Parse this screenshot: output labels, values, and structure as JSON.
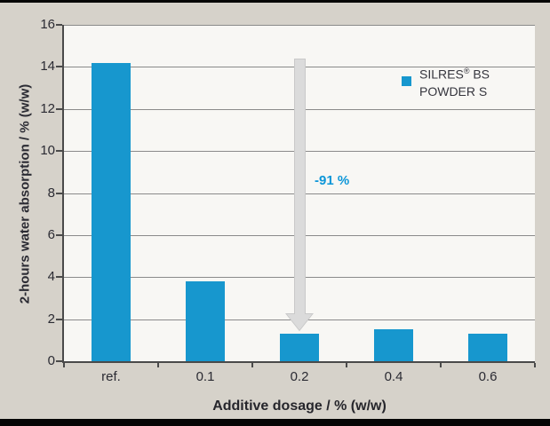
{
  "colors": {
    "bar_blue": "#1797CE",
    "annotation_blue": "#0C96D8",
    "background": "#D6D2CA",
    "plot_background": "#F8F7F4",
    "gridline": "#8A8A8A",
    "axis": "#4A4A4A",
    "text_dark": "#2B2B33",
    "arrow_fill": "#DBDBDB",
    "arrow_stroke": "#C9C9C9",
    "border_strip": "#050505"
  },
  "chart_data": {
    "type": "bar",
    "title": "",
    "categories": [
      "ref.",
      "0.1",
      "0.2",
      "0.4",
      "0.6"
    ],
    "values": [
      14.2,
      3.8,
      1.3,
      1.5,
      1.3
    ],
    "xlabel": "Additive dosage / % (w/w)",
    "ylabel": "2-hours water absorption / % (w/w)",
    "ylim": [
      0,
      16
    ],
    "yticks": [
      0,
      2,
      4,
      6,
      8,
      10,
      12,
      14,
      16
    ],
    "grid": true,
    "bar_color": "#1797CE",
    "legend": {
      "position": "top-right",
      "brand": "SILRES",
      "reg": "®",
      "suffix": " BS",
      "line2": "POWDER S"
    },
    "annotation": {
      "text": "-91 %",
      "arrow": "down",
      "at_category": "0.2"
    }
  }
}
